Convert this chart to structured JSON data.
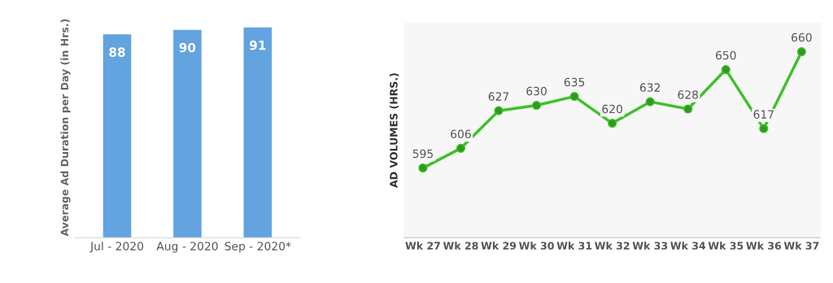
{
  "chart_data": [
    {
      "type": "bar",
      "ylabel": "Average Ad Duration per Day (in Hrs.)",
      "categories": [
        "Jul - 2020",
        "Aug - 2020",
        "Sep - 2020*"
      ],
      "values": [
        88,
        90,
        91
      ],
      "color": "#62a3e0",
      "data_labels": true,
      "tick_labels": "x",
      "grid": false,
      "legend": false
    },
    {
      "type": "line",
      "ylabel": "AD VOLUMES (HRS.)",
      "categories": [
        "Wk 27",
        "Wk 28",
        "Wk 29",
        "Wk 30",
        "Wk 31",
        "Wk 32",
        "Wk 33",
        "Wk 34",
        "Wk 35",
        "Wk 36",
        "Wk 37"
      ],
      "values": [
        595,
        606,
        627,
        630,
        635,
        620,
        632,
        628,
        650,
        617,
        660
      ],
      "color": "#3fc12a",
      "marker": "circle",
      "line_style": "solid",
      "data_labels": true,
      "tick_labels": "x",
      "grid": false,
      "legend": false
    }
  ]
}
